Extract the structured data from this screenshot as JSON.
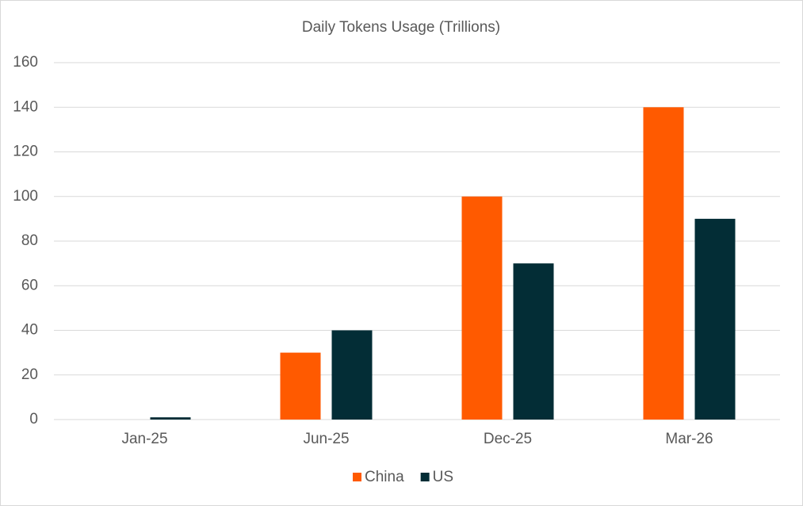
{
  "chart_data": {
    "type": "bar",
    "title": "Daily Tokens Usage (Trillions)",
    "categories": [
      "Jan-25",
      "Jun-25",
      "Dec-25",
      "Mar-26"
    ],
    "series": [
      {
        "name": "China",
        "color": "#ff5a00",
        "values": [
          0,
          30,
          100,
          140
        ]
      },
      {
        "name": "US",
        "color": "#032d36",
        "values": [
          1,
          40,
          70,
          90
        ]
      }
    ],
    "ylim": [
      0,
      160
    ],
    "yticks": [
      0,
      20,
      40,
      60,
      80,
      100,
      120,
      140,
      160
    ],
    "grid": true,
    "legend": "bottom"
  }
}
